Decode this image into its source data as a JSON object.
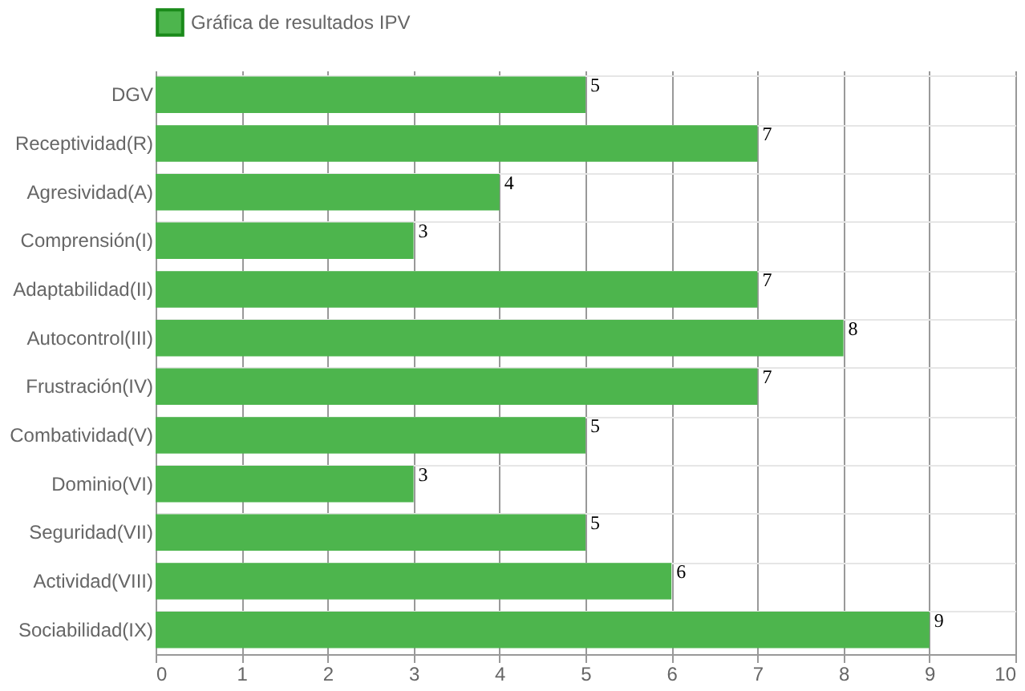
{
  "chart_data": {
    "type": "bar",
    "orientation": "horizontal",
    "categories": [
      "DGV",
      "Receptividad(R)",
      "Agresividad(A)",
      "Comprensión(I)",
      "Adaptabilidad(II)",
      "Autocontrol(III)",
      "Frustración(IV)",
      "Combatividad(V)",
      "Dominio(VI)",
      "Seguridad(VII)",
      "Actividad(VIII)",
      "Sociabilidad(IX)"
    ],
    "series": [
      {
        "name": "Gráfica de resultados IPV",
        "color": "#4db54d",
        "values": [
          5,
          7,
          4,
          3,
          7,
          8,
          7,
          5,
          3,
          5,
          6,
          9
        ]
      }
    ],
    "xlim": [
      0,
      10
    ],
    "xticks": [
      0,
      1,
      2,
      3,
      4,
      5,
      6,
      7,
      8,
      9,
      10
    ],
    "grid": true,
    "legend": "top",
    "data_labels": true
  }
}
